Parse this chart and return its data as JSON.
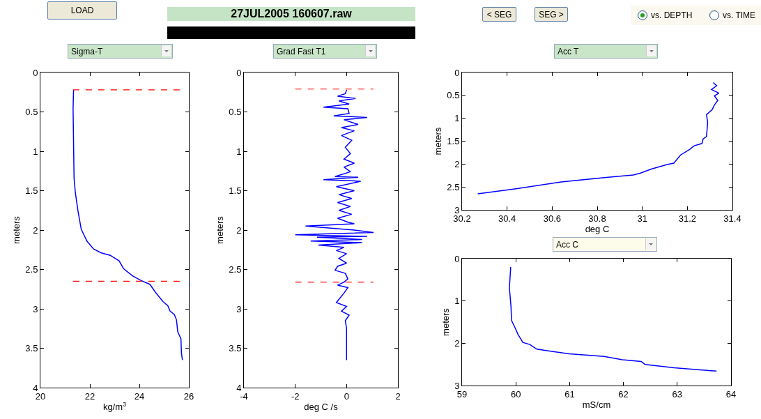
{
  "chart_data": [
    {
      "type": "other",
      "title": "27JUL2005 160607.raw",
      "annotations": [
        "LOAD",
        "< SEG",
        "SEG >",
        "vs. DEPTH",
        "vs. TIME"
      ]
    },
    {
      "type": "line",
      "title": "Sigma-T",
      "xlabel": "kg/m$^{3}$",
      "ylabel": "meters",
      "xlim": [
        20,
        26
      ],
      "xticks": [
        20,
        22,
        24,
        26
      ],
      "ylim": [
        4,
        0
      ],
      "yticks": [
        0,
        0.5,
        1,
        1.5,
        2,
        2.5,
        3,
        3.5,
        4
      ],
      "marker": "none",
      "line_style": "solid",
      "series": [
        {
          "color": "#0000ff",
          "x": [
            21.34,
            21.32,
            21.36,
            21.41,
            21.52,
            21.65,
            21.88,
            22.15,
            22.46,
            22.82,
            23.18,
            23.36,
            23.72,
            24.07,
            24.43,
            24.65,
            24.96,
            25.15,
            25.24,
            25.41,
            25.5,
            25.55,
            25.68,
            25.7,
            25.74
          ],
          "values": [
            0.22,
            0.46,
            1.34,
            1.52,
            1.76,
            1.99,
            2.14,
            2.24,
            2.29,
            2.32,
            2.39,
            2.49,
            2.58,
            2.64,
            2.69,
            2.79,
            2.91,
            2.96,
            3.03,
            3.07,
            3.14,
            3.29,
            3.38,
            3.56,
            3.65
          ]
        }
      ],
      "ref_lines": [
        {
          "axis": "y",
          "value": 0.22,
          "color": "#ff0000",
          "line_style": "dashed"
        },
        {
          "axis": "y",
          "value": 2.65,
          "color": "#ff0000",
          "line_style": "dashed"
        }
      ]
    },
    {
      "type": "line",
      "title": "Grad Fast T1",
      "xlabel": "deg C /s",
      "ylabel": "meters",
      "xlim": [
        -4,
        2
      ],
      "xticks": [
        -4,
        -2,
        0,
        2
      ],
      "ylim": [
        4,
        0
      ],
      "yticks": [
        0,
        0.5,
        1,
        1.5,
        2,
        2.5,
        3,
        3.5,
        4
      ],
      "marker": "none",
      "line_style": "solid",
      "series": [
        {
          "color": "#0000ff",
          "x": [
            0,
            -0.05,
            -0.35,
            0.35,
            -0.3,
            0.1,
            -0.9,
            0.05,
            0.1,
            -0.5,
            0.8,
            -0.1,
            0.45,
            -0.2,
            0.3,
            -0.2,
            0.2,
            -0.05,
            0.15,
            -0.1,
            0.3,
            -0.1,
            0.15,
            -0.45,
            0.45,
            -0.9,
            0.55,
            -0.4,
            0.3,
            -0.3,
            0.2,
            -0.35,
            0.15,
            -0.3,
            0.2,
            -0.35,
            0.05,
            0.3,
            -1.6,
            0.3,
            1.05,
            -2.0,
            0.8,
            -1.15,
            0.6,
            -1.4,
            0.6,
            -1.1,
            -0.1,
            -0.4,
            0,
            -0.3,
            0,
            -0.35,
            -0.45,
            -0.05,
            0.05,
            -0.1,
            -0.35,
            0.05,
            -0.1,
            -0.25,
            -0.4,
            0,
            -0.2,
            0.1,
            -0.05,
            0,
            0
          ],
          "values": [
            0.22,
            0.27,
            0.3,
            0.33,
            0.36,
            0.4,
            0.44,
            0.46,
            0.52,
            0.55,
            0.57,
            0.6,
            0.66,
            0.7,
            0.74,
            0.8,
            0.86,
            0.95,
            1.03,
            1.1,
            1.15,
            1.2,
            1.26,
            1.32,
            1.33,
            1.36,
            1.38,
            1.45,
            1.5,
            1.55,
            1.6,
            1.65,
            1.7,
            1.75,
            1.8,
            1.85,
            1.9,
            1.92,
            1.95,
            2.0,
            2.03,
            2.06,
            2.08,
            2.09,
            2.12,
            2.14,
            2.16,
            2.19,
            2.22,
            2.26,
            2.3,
            2.36,
            2.42,
            2.46,
            2.51,
            2.55,
            2.62,
            2.66,
            2.7,
            2.73,
            2.8,
            2.86,
            2.92,
            2.97,
            3.03,
            3.08,
            3.15,
            3.25,
            3.65
          ]
        }
      ],
      "ref_lines": [
        {
          "axis": "y",
          "value": 0.21,
          "color": "#ff0000",
          "line_style": "dashed"
        },
        {
          "axis": "y",
          "value": 2.66,
          "color": "#ff0000",
          "line_style": "dashed"
        }
      ]
    },
    {
      "type": "line",
      "title": "Acc T",
      "xlabel": "deg C",
      "ylabel": "meters",
      "xlim": [
        30.2,
        31.4
      ],
      "xticks": [
        30.2,
        30.4,
        30.6,
        30.8,
        31,
        31.2,
        31.4
      ],
      "ylim": [
        3,
        0
      ],
      "yticks": [
        0,
        0.5,
        1,
        1.5,
        2,
        2.5,
        3
      ],
      "marker": "none",
      "line_style": "solid",
      "series": [
        {
          "color": "#0000ff",
          "x": [
            31.315,
            31.33,
            31.307,
            31.34,
            31.32,
            31.335,
            31.32,
            31.31,
            31.285,
            31.29,
            31.285,
            31.27,
            31.265,
            31.23,
            31.21,
            31.17,
            31.14,
            31.11,
            31.04,
            30.99,
            30.96,
            30.84,
            30.64,
            30.44,
            30.27
          ],
          "values": [
            0.22,
            0.29,
            0.37,
            0.45,
            0.51,
            0.61,
            0.71,
            0.81,
            0.92,
            1.09,
            1.4,
            1.45,
            1.55,
            1.6,
            1.68,
            1.8,
            1.98,
            2.01,
            2.11,
            2.2,
            2.24,
            2.29,
            2.39,
            2.54,
            2.65
          ]
        }
      ]
    },
    {
      "type": "line",
      "title": "Acc C",
      "xlabel": "mS/cm",
      "ylabel": "meters",
      "xlim": [
        59,
        64
      ],
      "xticks": [
        59,
        60,
        61,
        62,
        63,
        64
      ],
      "ylim": [
        3,
        0
      ],
      "yticks": [
        0,
        1,
        2,
        3
      ],
      "marker": "none",
      "line_style": "solid",
      "series": [
        {
          "color": "#0000ff",
          "x": [
            59.905,
            59.88,
            59.91,
            59.92,
            59.98,
            60.04,
            60.13,
            60.26,
            60.39,
            60.6,
            60.99,
            61.64,
            61.98,
            62.33,
            62.4,
            62.94,
            63.42,
            63.73
          ],
          "values": [
            0.2,
            0.69,
            1.13,
            1.46,
            1.62,
            1.79,
            1.98,
            2.03,
            2.14,
            2.18,
            2.25,
            2.31,
            2.39,
            2.43,
            2.5,
            2.58,
            2.63,
            2.66
          ]
        }
      ]
    }
  ]
}
